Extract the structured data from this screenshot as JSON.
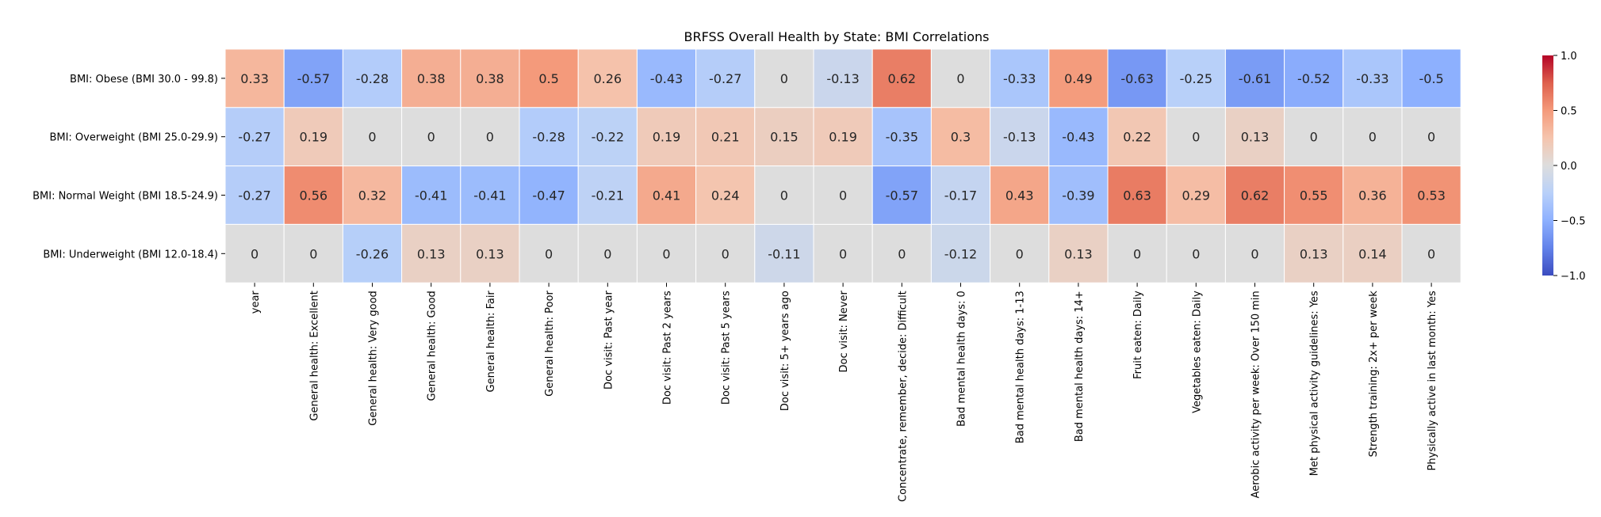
{
  "chart_data": {
    "type": "heatmap",
    "title": "BRFSS Overall Health by State: BMI Correlations",
    "rows": [
      "BMI: Obese (BMI 30.0 - 99.8)",
      "BMI: Overweight (BMI 25.0-29.9)",
      "BMI: Normal Weight (BMI 18.5-24.9)",
      "BMI: Underweight (BMI 12.0-18.4)"
    ],
    "columns": [
      "year",
      "General health: Excellent",
      "General health: Very good",
      "General health: Good",
      "General health: Fair",
      "General health: Poor",
      "Doc visit: Past year",
      "Doc visit: Past 2 years",
      "Doc visit: Past 5 years",
      "Doc visit: 5+ years ago",
      "Doc visit: Never",
      "Concentrate, remember, decide: Difficult",
      "Bad mental health days: 0",
      "Bad mental health days: 1-13",
      "Bad mental health days: 14+",
      "Fruit eaten: Daily",
      "Vegetables eaten: Daily",
      "Aerobic activity per week: Over 150 min",
      "Met physical activity guidelines: Yes",
      "Strength training: 2x+ per week",
      "Physically active in last month: Yes"
    ],
    "values": [
      [
        0.33,
        -0.57,
        -0.28,
        0.38,
        0.38,
        0.5,
        0.26,
        -0.43,
        -0.27,
        0,
        -0.13,
        0.62,
        0,
        -0.33,
        0.49,
        -0.63,
        -0.25,
        -0.61,
        -0.52,
        -0.33,
        -0.5
      ],
      [
        -0.27,
        0.19,
        0,
        0,
        0,
        -0.28,
        -0.22,
        0.19,
        0.21,
        0.15,
        0.19,
        -0.35,
        0.3,
        -0.13,
        -0.43,
        0.22,
        0,
        0.13,
        0,
        0,
        0
      ],
      [
        -0.27,
        0.56,
        0.32,
        -0.41,
        -0.41,
        -0.47,
        -0.21,
        0.41,
        0.24,
        0,
        0,
        -0.57,
        -0.17,
        0.43,
        -0.39,
        0.63,
        0.29,
        0.62,
        0.55,
        0.36,
        0.53
      ],
      [
        0,
        0,
        -0.26,
        0.13,
        0.13,
        0,
        0,
        0,
        0,
        -0.11,
        0,
        0,
        -0.12,
        0,
        0.13,
        0,
        0,
        0,
        0.13,
        0.14,
        0
      ]
    ],
    "colormap": "coolwarm",
    "vmin": -1.0,
    "vmax": 1.0,
    "colorbar_ticks": [
      "1.0",
      "0.5",
      "0.0",
      "−0.5",
      "−1.0"
    ],
    "colorbar_tick_values": [
      1.0,
      0.5,
      0.0,
      -0.5,
      -1.0
    ]
  }
}
